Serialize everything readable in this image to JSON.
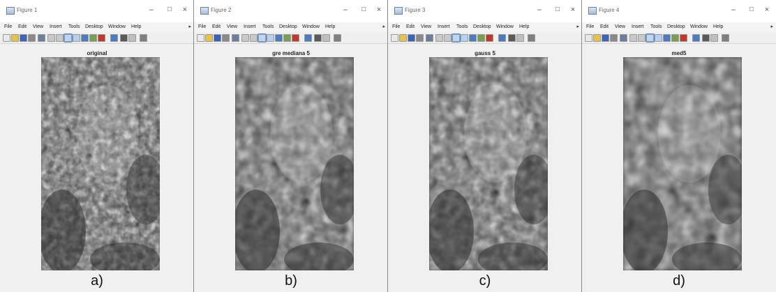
{
  "windows": [
    {
      "title": "Figure 1",
      "plot_title": "original",
      "caption": "a)",
      "menu": [
        "File",
        "Edit",
        "View",
        "Insert",
        "Tools",
        "Desktop",
        "Window",
        "Help"
      ]
    },
    {
      "title": "Figure 2",
      "plot_title": "gre mediana 5",
      "caption": "b)",
      "menu": [
        "File",
        "Edit",
        "View",
        "Insert",
        "Tools",
        "Desktop",
        "Window",
        "Help"
      ]
    },
    {
      "title": "Figure 3",
      "plot_title": "gauss 5",
      "caption": "c)",
      "menu": [
        "File",
        "Edit",
        "View",
        "Insert",
        "Tools",
        "Desktop",
        "Window",
        "Help"
      ]
    },
    {
      "title": "Figure 4",
      "plot_title": "med5",
      "caption": "d)",
      "menu": [
        "File",
        "Edit",
        "View",
        "Insert",
        "Tools",
        "Desktop",
        "Window",
        "Help"
      ]
    }
  ],
  "window_controls": {
    "minimize": "–",
    "maximize": "□",
    "close": "×"
  },
  "toolbar_icons": [
    "new-figure-icon",
    "open-file-icon",
    "save-icon",
    "print-icon",
    "edit-plot-icon",
    "zoom-in-icon",
    "zoom-out-icon",
    "pan-icon",
    "rotate-icon",
    "data-cursor-icon",
    "brush-icon",
    "link-plot-icon",
    "colorbar-icon",
    "legend-icon",
    "hide-plot-tools-icon",
    "show-plot-tools-icon"
  ],
  "colors": {
    "window_bg": "#f0f0f0",
    "titlebar_bg": "#ffffff",
    "image_dark": "#3a3a3a",
    "image_light": "#e6e6e6"
  }
}
